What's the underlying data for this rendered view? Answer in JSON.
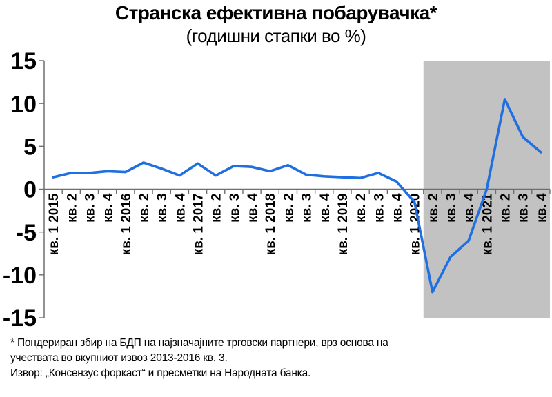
{
  "page": {
    "background": "#FFFFFF"
  },
  "chart": {
    "title": "Странска ефективна побарувачка*",
    "subtitle": "(годишни стапки во %)"
  },
  "chart_data": {
    "type": "line",
    "title": "Странска ефективна побарувачка*",
    "subtitle": "(годишни стапки во %)",
    "categories": [
      "кв. 1 2015",
      "кв. 2",
      "кв. 3",
      "кв. 4",
      "кв. 1 2016",
      "кв. 2",
      "кв. 3",
      "кв. 4",
      "кв. 1 2017",
      "кв. 2",
      "кв. 3",
      "кв. 4",
      "кв. 1 2018",
      "кв. 2",
      "кв. 3",
      "кв. 4",
      "кв. 1 2019",
      "кв. 2",
      "кв. 3",
      "кв. 4",
      "кв. 1 2020",
      "кв. 2",
      "кв. 3",
      "кв. 4",
      "кв. 1 2021",
      "кв. 2",
      "кв. 3",
      "кв. 4"
    ],
    "values": [
      1.4,
      1.9,
      1.9,
      2.1,
      2.0,
      3.1,
      2.4,
      1.6,
      3.0,
      1.6,
      2.7,
      2.6,
      2.1,
      2.8,
      1.7,
      1.5,
      1.4,
      1.3,
      1.9,
      0.9,
      -1.5,
      -12.0,
      -7.9,
      -6.0,
      0.0,
      10.5,
      6.1,
      4.3
    ],
    "xlabel": "",
    "ylabel": "",
    "ylim": [
      -15,
      15
    ],
    "yticks": [
      15,
      10,
      5,
      0,
      -5,
      -10,
      -15
    ],
    "grid": false,
    "legend": "none",
    "line_color": "#1F6FE1",
    "axis_color": "#6E6E6E",
    "label_color": "#000000",
    "shaded_region": {
      "start_index": 21,
      "end_index": 27,
      "start_category": "кв. 2 2020",
      "end_category": "кв. 4 2021",
      "color": "#C2C2C2"
    }
  },
  "footnotes": {
    "line1": "* Пондериран збир на БДП на најзначајните трговски партнери, врз основа на",
    "line2": "учествата во вкупниот извоз 2013-2016 кв. 3.",
    "source": "Извор: „Консензус форкаст“ и пресметки на Народната банка."
  }
}
